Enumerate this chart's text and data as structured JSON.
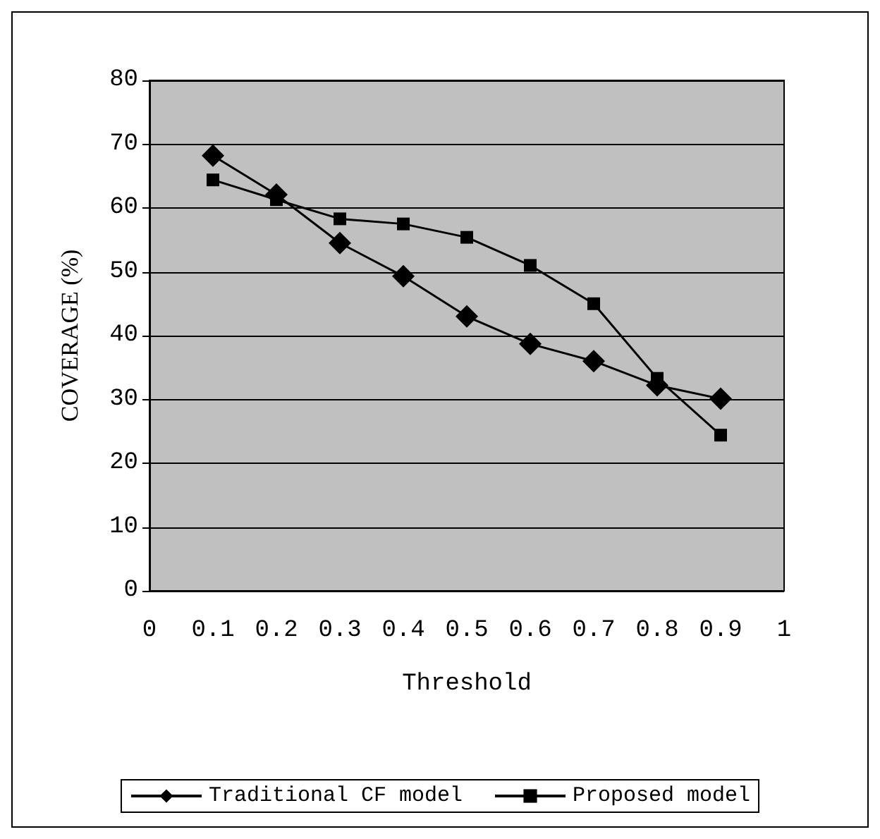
{
  "chart_data": {
    "type": "line",
    "xlabel": "Threshold",
    "ylabel": "COVERAGE (%)",
    "x": [
      0.1,
      0.2,
      0.3,
      0.4,
      0.5,
      0.6,
      0.7,
      0.8,
      0.9
    ],
    "series": [
      {
        "name": "Traditional CF model",
        "color": "#000000",
        "marker": "diamond",
        "values": [
          68.2,
          62.1,
          54.5,
          49.3,
          43,
          38.7,
          36,
          32.2,
          30.1
        ]
      },
      {
        "name": "Proposed model",
        "color": "#000000",
        "marker": "square",
        "values": [
          64.4,
          61.3,
          58.3,
          57.5,
          55.4,
          51,
          45,
          33.3,
          24.4
        ]
      }
    ],
    "xlim": [
      0,
      1
    ],
    "xticks": [
      0,
      0.1,
      0.2,
      0.3,
      0.4,
      0.5,
      0.6,
      0.7,
      0.8,
      0.9,
      1
    ],
    "ylim": [
      0,
      80
    ],
    "yticks": [
      0,
      10,
      20,
      30,
      40,
      50,
      60,
      70,
      80
    ],
    "grid": "y",
    "legend": "bottom",
    "line_style": "solid"
  }
}
